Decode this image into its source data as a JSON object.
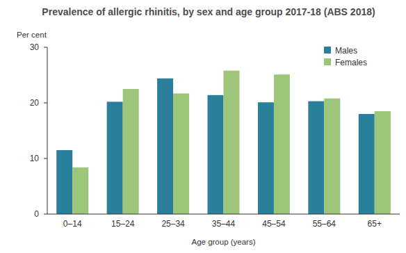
{
  "chart_data": {
    "type": "bar",
    "title": "Prevalence of allergic rhinitis, by sex and age group 2017-18 (ABS 2018)",
    "y_label": "Per cent",
    "x_label": "Age group (years)",
    "categories": [
      "0–14",
      "15–24",
      "25–34",
      "35–44",
      "45–54",
      "55–64",
      "65+"
    ],
    "series": [
      {
        "name": "Males",
        "color": "#2a7f9b",
        "values": [
          11.5,
          20.2,
          24.4,
          21.4,
          20.1,
          20.3,
          18.0
        ]
      },
      {
        "name": "Females",
        "color": "#9dc67b",
        "values": [
          8.4,
          22.5,
          21.7,
          25.8,
          25.1,
          20.8,
          18.5
        ]
      }
    ],
    "ylim": [
      0,
      30
    ],
    "yticks": [
      0,
      10,
      20,
      30
    ],
    "grid": false,
    "legend": "top-right"
  }
}
